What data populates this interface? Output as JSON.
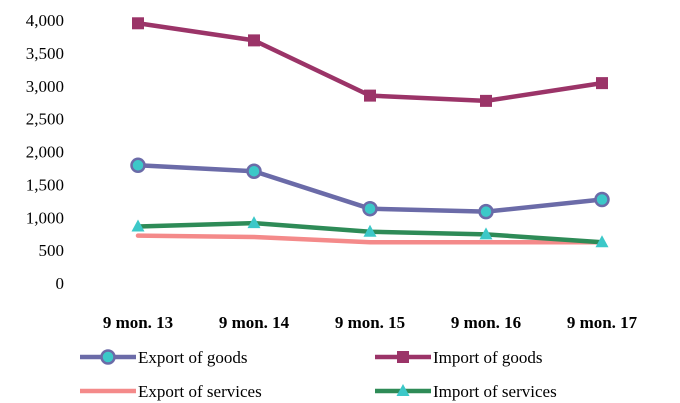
{
  "chart_data": {
    "type": "line",
    "categories": [
      "9 mon. 13",
      "9 mon. 14",
      "9 mon. 15",
      "9 mon. 16",
      "9 mon. 17"
    ],
    "ylim": [
      0,
      4000
    ],
    "yticks": [
      "0",
      "500",
      "1,000",
      "1,500",
      "2,000",
      "2,500",
      "3,000",
      "3,500",
      "4,000"
    ],
    "ytick_values": [
      0,
      500,
      1000,
      1500,
      2000,
      2500,
      3000,
      3500,
      4000
    ],
    "grid": false,
    "legend_position": "bottom",
    "series": [
      {
        "name": "Export of goods",
        "values": [
          1790,
          1700,
          1130,
          1085,
          1270
        ],
        "color": "#6b6ba8",
        "marker": "circle",
        "marker_color": "#3cc8c8"
      },
      {
        "name": "Import of goods",
        "values": [
          3950,
          3690,
          2850,
          2770,
          3040
        ],
        "color": "#9b3468",
        "marker": "square",
        "marker_color": "#9b3468"
      },
      {
        "name": "Export of services",
        "values": [
          720,
          700,
          620,
          620,
          620
        ],
        "color": "#f48a8a",
        "marker": "none",
        "marker_color": "#f48a8a"
      },
      {
        "name": "Import of services",
        "values": [
          860,
          910,
          780,
          740,
          620
        ],
        "color": "#2e8b57",
        "marker": "triangle",
        "marker_color": "#3cc8c8"
      }
    ]
  }
}
